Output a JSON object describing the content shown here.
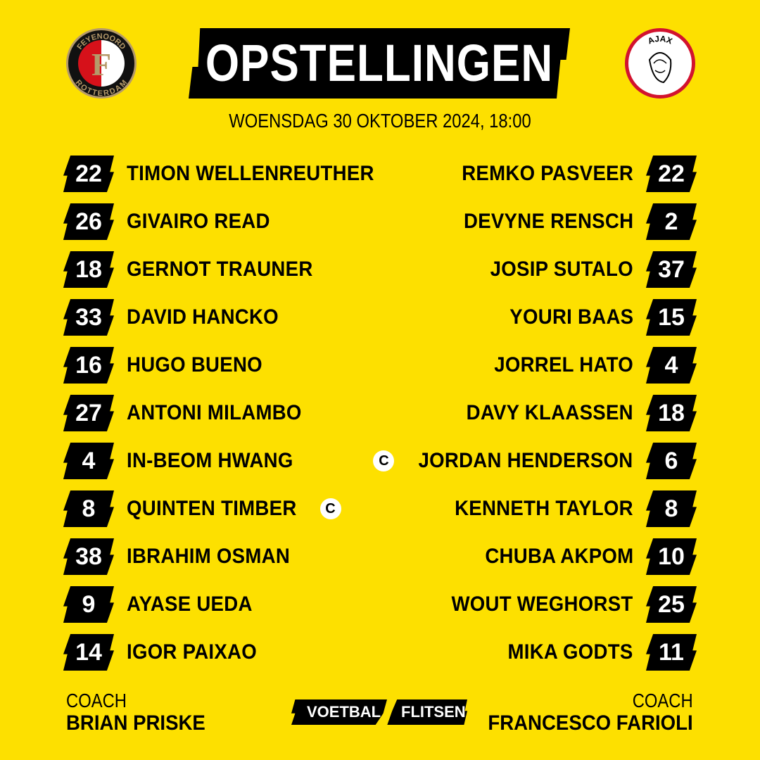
{
  "header": {
    "title": "OPSTELLINGEN",
    "date": "WOENSDAG 30 OKTOBER 2024, 18:00"
  },
  "home": {
    "club_logo": "FEYENOORD ROTTERDAM",
    "players": [
      {
        "number": "22",
        "name": "TIMON WELLENREUTHER"
      },
      {
        "number": "26",
        "name": "GIVAIRO READ"
      },
      {
        "number": "18",
        "name": "GERNOT TRAUNER"
      },
      {
        "number": "33",
        "name": "DAVID HANCKO"
      },
      {
        "number": "16",
        "name": "HUGO BUENO"
      },
      {
        "number": "27",
        "name": "ANTONI MILAMBO"
      },
      {
        "number": "4",
        "name": "IN-BEOM HWANG"
      },
      {
        "number": "8",
        "name": "QUINTEN TIMBER",
        "captain": true
      },
      {
        "number": "38",
        "name": "IBRAHIM OSMAN"
      },
      {
        "number": "9",
        "name": "AYASE UEDA"
      },
      {
        "number": "14",
        "name": "IGOR PAIXAO"
      }
    ],
    "coach_label": "COACH",
    "coach": "BRIAN PRISKE"
  },
  "away": {
    "club_logo": "AJAX AMSTERDAM",
    "players": [
      {
        "number": "22",
        "name": "REMKO PASVEER"
      },
      {
        "number": "2",
        "name": "DEVYNE RENSCH"
      },
      {
        "number": "37",
        "name": "JOSIP SUTALO"
      },
      {
        "number": "15",
        "name": "YOURI BAAS"
      },
      {
        "number": "4",
        "name": "JORREL HATO"
      },
      {
        "number": "18",
        "name": "DAVY KLAASSEN"
      },
      {
        "number": "6",
        "name": "JORDAN HENDERSON",
        "captain": true
      },
      {
        "number": "8",
        "name": "KENNETH TAYLOR"
      },
      {
        "number": "10",
        "name": "CHUBA AKPOM"
      },
      {
        "number": "25",
        "name": "WOUT WEGHORST"
      },
      {
        "number": "11",
        "name": "MIKA GODTS"
      }
    ],
    "coach_label": "COACH",
    "coach": "FRANCESCO FARIOLI"
  },
  "captain_mark": "C",
  "brand": {
    "part1": "VOETBAL",
    "part2": "FLITSEN"
  },
  "colors": {
    "background": "#fde000",
    "badge": "#000000",
    "text": "#000000"
  }
}
